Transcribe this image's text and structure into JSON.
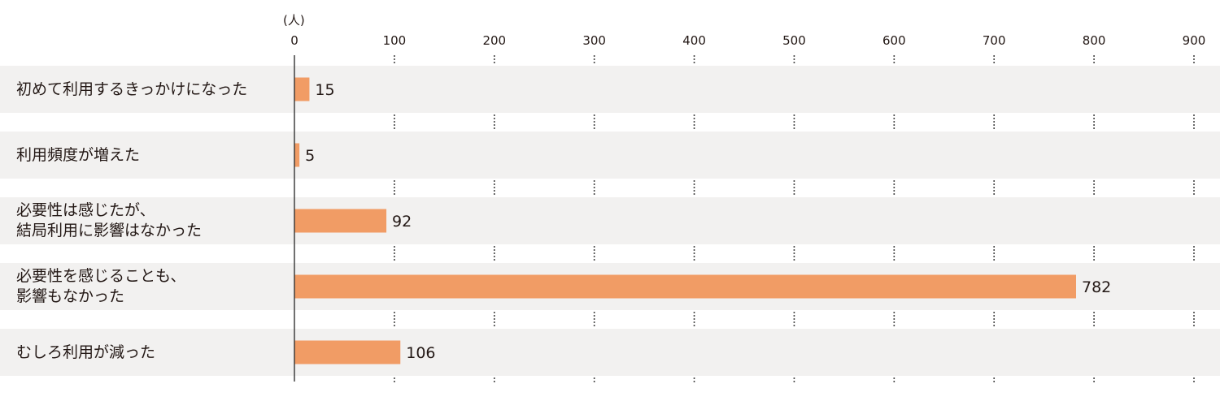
{
  "chart_data": {
    "type": "bar",
    "orientation": "horizontal",
    "unit": "(人)",
    "categories": [
      [
        "初めて利用するきっかけになった"
      ],
      [
        "利用頻度が増えた"
      ],
      [
        "必要性は感じたが、",
        "結局利用に影響はなかった"
      ],
      [
        "必要性を感じることも、",
        "影響もなかった"
      ],
      [
        "むしろ利用が減った"
      ]
    ],
    "values": [
      15,
      5,
      92,
      782,
      106
    ],
    "xlim": [
      0,
      900
    ],
    "ticks": [
      0,
      100,
      200,
      300,
      400,
      500,
      600,
      700,
      800,
      900
    ],
    "data_labels": true,
    "grid": "dotted-vertical",
    "colors": {
      "bar": "#F19C65",
      "row_band": "#F2F1F0",
      "text": "#231815",
      "axis": "#333333"
    }
  }
}
